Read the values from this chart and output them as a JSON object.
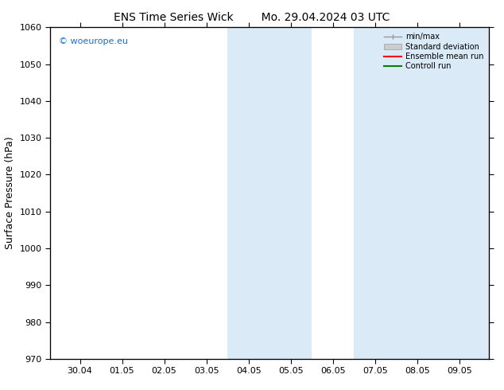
{
  "title_left": "ENS Time Series Wick",
  "title_right": "Mo. 29.04.2024 03 UTC",
  "ylabel": "Surface Pressure (hPa)",
  "ylim": [
    970,
    1060
  ],
  "yticks": [
    970,
    980,
    990,
    1000,
    1010,
    1020,
    1030,
    1040,
    1050,
    1060
  ],
  "xtick_labels": [
    "30.04",
    "01.05",
    "02.05",
    "03.05",
    "04.05",
    "05.05",
    "06.05",
    "07.05",
    "08.05",
    "09.05"
  ],
  "xtick_positions": [
    1,
    2,
    3,
    4,
    5,
    6,
    7,
    8,
    9,
    10
  ],
  "xlim": [
    0.3,
    10.7
  ],
  "shade_regions": [
    {
      "start": 4.5,
      "end": 6.5
    },
    {
      "start": 7.5,
      "end": 10.7
    }
  ],
  "shade_color": "#daeaf7",
  "watermark_text": "© woeurope.eu",
  "watermark_color": "#1a6fce",
  "bg_color": "#ffffff",
  "spine_color": "#000000",
  "tick_color": "#000000",
  "font_size_title": 10,
  "font_size_axis": 8,
  "font_size_legend": 7,
  "font_size_watermark": 8
}
